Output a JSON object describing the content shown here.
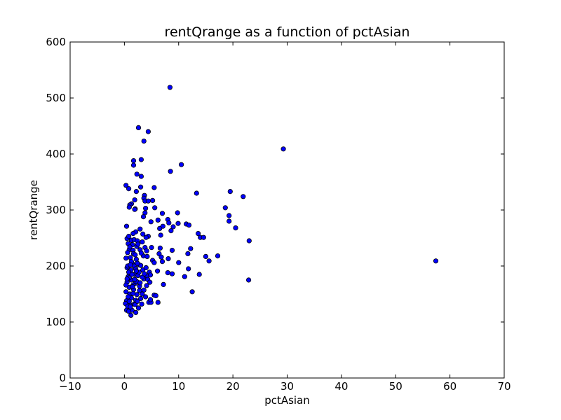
{
  "chart_data": {
    "type": "scatter",
    "title": "rentQrange as a function of pctAsian",
    "xlabel": "pctAsian",
    "ylabel": "rentQrange",
    "xlim": [
      -10,
      70
    ],
    "ylim": [
      0,
      600
    ],
    "xticks": [
      -10,
      0,
      10,
      20,
      30,
      40,
      50,
      60,
      70
    ],
    "yticks": [
      0,
      100,
      200,
      300,
      400,
      500,
      600
    ],
    "xtick_labels": [
      "−10",
      "0",
      "10",
      "20",
      "30",
      "40",
      "50",
      "60",
      "70"
    ],
    "ytick_labels": [
      "0",
      "100",
      "200",
      "300",
      "400",
      "500",
      "600"
    ],
    "grid": false,
    "legend": "none",
    "marker_color": "#0000ff",
    "points": [
      [
        8.4,
        519
      ],
      [
        29.3,
        409
      ],
      [
        57.4,
        209
      ],
      [
        2.6,
        447
      ],
      [
        4.4,
        440
      ],
      [
        3.6,
        423
      ],
      [
        3.1,
        390
      ],
      [
        1.7,
        388
      ],
      [
        1.7,
        380
      ],
      [
        10.5,
        381
      ],
      [
        8.5,
        369
      ],
      [
        2.3,
        364
      ],
      [
        3.1,
        360
      ],
      [
        0.3,
        344
      ],
      [
        0.8,
        338
      ],
      [
        3.0,
        341
      ],
      [
        5.5,
        340
      ],
      [
        2.2,
        333
      ],
      [
        13.3,
        330
      ],
      [
        19.5,
        333
      ],
      [
        21.9,
        324
      ],
      [
        3.7,
        326
      ],
      [
        3.6,
        321
      ],
      [
        1.9,
        318
      ],
      [
        3.8,
        316
      ],
      [
        5.2,
        317
      ],
      [
        4.4,
        316
      ],
      [
        1.3,
        311
      ],
      [
        1.0,
        309
      ],
      [
        0.9,
        305
      ],
      [
        2.0,
        302
      ],
      [
        1.9,
        301
      ],
      [
        3.9,
        303
      ],
      [
        5.6,
        304
      ],
      [
        18.6,
        304
      ],
      [
        3.8,
        295
      ],
      [
        7.0,
        294
      ],
      [
        9.8,
        295
      ],
      [
        19.3,
        290
      ],
      [
        3.5,
        288
      ],
      [
        6.2,
        282
      ],
      [
        8.0,
        283
      ],
      [
        4.9,
        279
      ],
      [
        19.3,
        280
      ],
      [
        8.2,
        277
      ],
      [
        9.9,
        276
      ],
      [
        11.4,
        275
      ],
      [
        11.9,
        273
      ],
      [
        0.4,
        271
      ],
      [
        7.1,
        271
      ],
      [
        9.0,
        270
      ],
      [
        20.5,
        268
      ],
      [
        6.5,
        267
      ],
      [
        2.9,
        266
      ],
      [
        8.6,
        263
      ],
      [
        2.1,
        261
      ],
      [
        1.6,
        258
      ],
      [
        3.4,
        257
      ],
      [
        13.6,
        258
      ],
      [
        6.7,
        255
      ],
      [
        14.0,
        251
      ],
      [
        14.6,
        251
      ],
      [
        4.4,
        253
      ],
      [
        0.5,
        249
      ],
      [
        1.3,
        246
      ],
      [
        1.8,
        247
      ],
      [
        2.4,
        245
      ],
      [
        23.0,
        245
      ],
      [
        3.3,
        243
      ],
      [
        0.7,
        240
      ],
      [
        1.5,
        238
      ],
      [
        2.3,
        235
      ],
      [
        3.8,
        233
      ],
      [
        5.0,
        233
      ],
      [
        6.6,
        232
      ],
      [
        12.2,
        231
      ],
      [
        0.9,
        229
      ],
      [
        1.6,
        228
      ],
      [
        2.9,
        229
      ],
      [
        4.1,
        227
      ],
      [
        8.8,
        228
      ],
      [
        1.7,
        222
      ],
      [
        6.4,
        222
      ],
      [
        11.7,
        222
      ],
      [
        3.5,
        218
      ],
      [
        4.2,
        217
      ],
      [
        6.8,
        216
      ],
      [
        8.1,
        213
      ],
      [
        15.0,
        217
      ],
      [
        17.2,
        218
      ],
      [
        0.3,
        214
      ],
      [
        1.1,
        215
      ],
      [
        2.2,
        212
      ],
      [
        5.2,
        210
      ],
      [
        5.5,
        206
      ],
      [
        10.0,
        206
      ],
      [
        15.6,
        209
      ],
      [
        7.0,
        208
      ],
      [
        1.5,
        204
      ],
      [
        2.7,
        202
      ],
      [
        1.8,
        200
      ],
      [
        3.0,
        201
      ],
      [
        6.1,
        191
      ],
      [
        8.0,
        188
      ],
      [
        8.8,
        186
      ],
      [
        11.1,
        181
      ],
      [
        11.8,
        195
      ],
      [
        13.8,
        185
      ],
      [
        0.5,
        197
      ],
      [
        1.2,
        193
      ],
      [
        2.1,
        195
      ],
      [
        3.4,
        193
      ],
      [
        0.8,
        189
      ],
      [
        4.6,
        189
      ],
      [
        1.9,
        185
      ],
      [
        2.5,
        183
      ],
      [
        4.2,
        182
      ],
      [
        0.7,
        181
      ],
      [
        3.6,
        177
      ],
      [
        4.3,
        176
      ],
      [
        1.3,
        175
      ],
      [
        0.5,
        171
      ],
      [
        2.0,
        169
      ],
      [
        7.2,
        167
      ],
      [
        2.8,
        164
      ],
      [
        4.1,
        165
      ],
      [
        22.9,
        175
      ],
      [
        0.9,
        162
      ],
      [
        1.7,
        158
      ],
      [
        3.6,
        157
      ],
      [
        0.3,
        154
      ],
      [
        1.0,
        150
      ],
      [
        2.3,
        149
      ],
      [
        5.5,
        148
      ],
      [
        5.8,
        147
      ],
      [
        12.5,
        154
      ],
      [
        1.3,
        143
      ],
      [
        3.0,
        142
      ],
      [
        0.4,
        138
      ],
      [
        2.1,
        139
      ],
      [
        4.5,
        135
      ],
      [
        4.9,
        135
      ],
      [
        6.2,
        135
      ],
      [
        0.2,
        133
      ],
      [
        1.0,
        131
      ],
      [
        1.8,
        132
      ],
      [
        3.2,
        132
      ],
      [
        0.6,
        128
      ],
      [
        2.6,
        125
      ],
      [
        0.4,
        121
      ],
      [
        1.4,
        121
      ],
      [
        1.2,
        112
      ],
      [
        0.8,
        119
      ],
      [
        1.6,
        166
      ],
      [
        2.3,
        172
      ],
      [
        0.9,
        179
      ],
      [
        1.4,
        185
      ],
      [
        2.7,
        189
      ],
      [
        0.6,
        200
      ],
      [
        1.3,
        208
      ],
      [
        2.0,
        220
      ],
      [
        0.6,
        224
      ],
      [
        3.1,
        223
      ],
      [
        1.0,
        234
      ],
      [
        2.5,
        239
      ],
      [
        0.8,
        253
      ],
      [
        4.0,
        251
      ],
      [
        1.6,
        151
      ],
      [
        2.8,
        156
      ],
      [
        0.7,
        145
      ],
      [
        3.9,
        145
      ],
      [
        2.0,
        131
      ],
      [
        0.3,
        166
      ],
      [
        1.9,
        176
      ],
      [
        3.3,
        180
      ],
      [
        4.8,
        184
      ],
      [
        4.0,
        197
      ],
      [
        2.4,
        205
      ],
      [
        1.1,
        202
      ],
      [
        3.7,
        186
      ],
      [
        2.2,
        191
      ],
      [
        0.5,
        177
      ],
      [
        1.5,
        163
      ],
      [
        2.9,
        170
      ],
      [
        4.7,
        171
      ],
      [
        3.3,
        150
      ],
      [
        0.9,
        137
      ],
      [
        2.4,
        137
      ],
      [
        1.1,
        127
      ],
      [
        2.1,
        117
      ],
      [
        4.8,
        140
      ]
    ]
  }
}
